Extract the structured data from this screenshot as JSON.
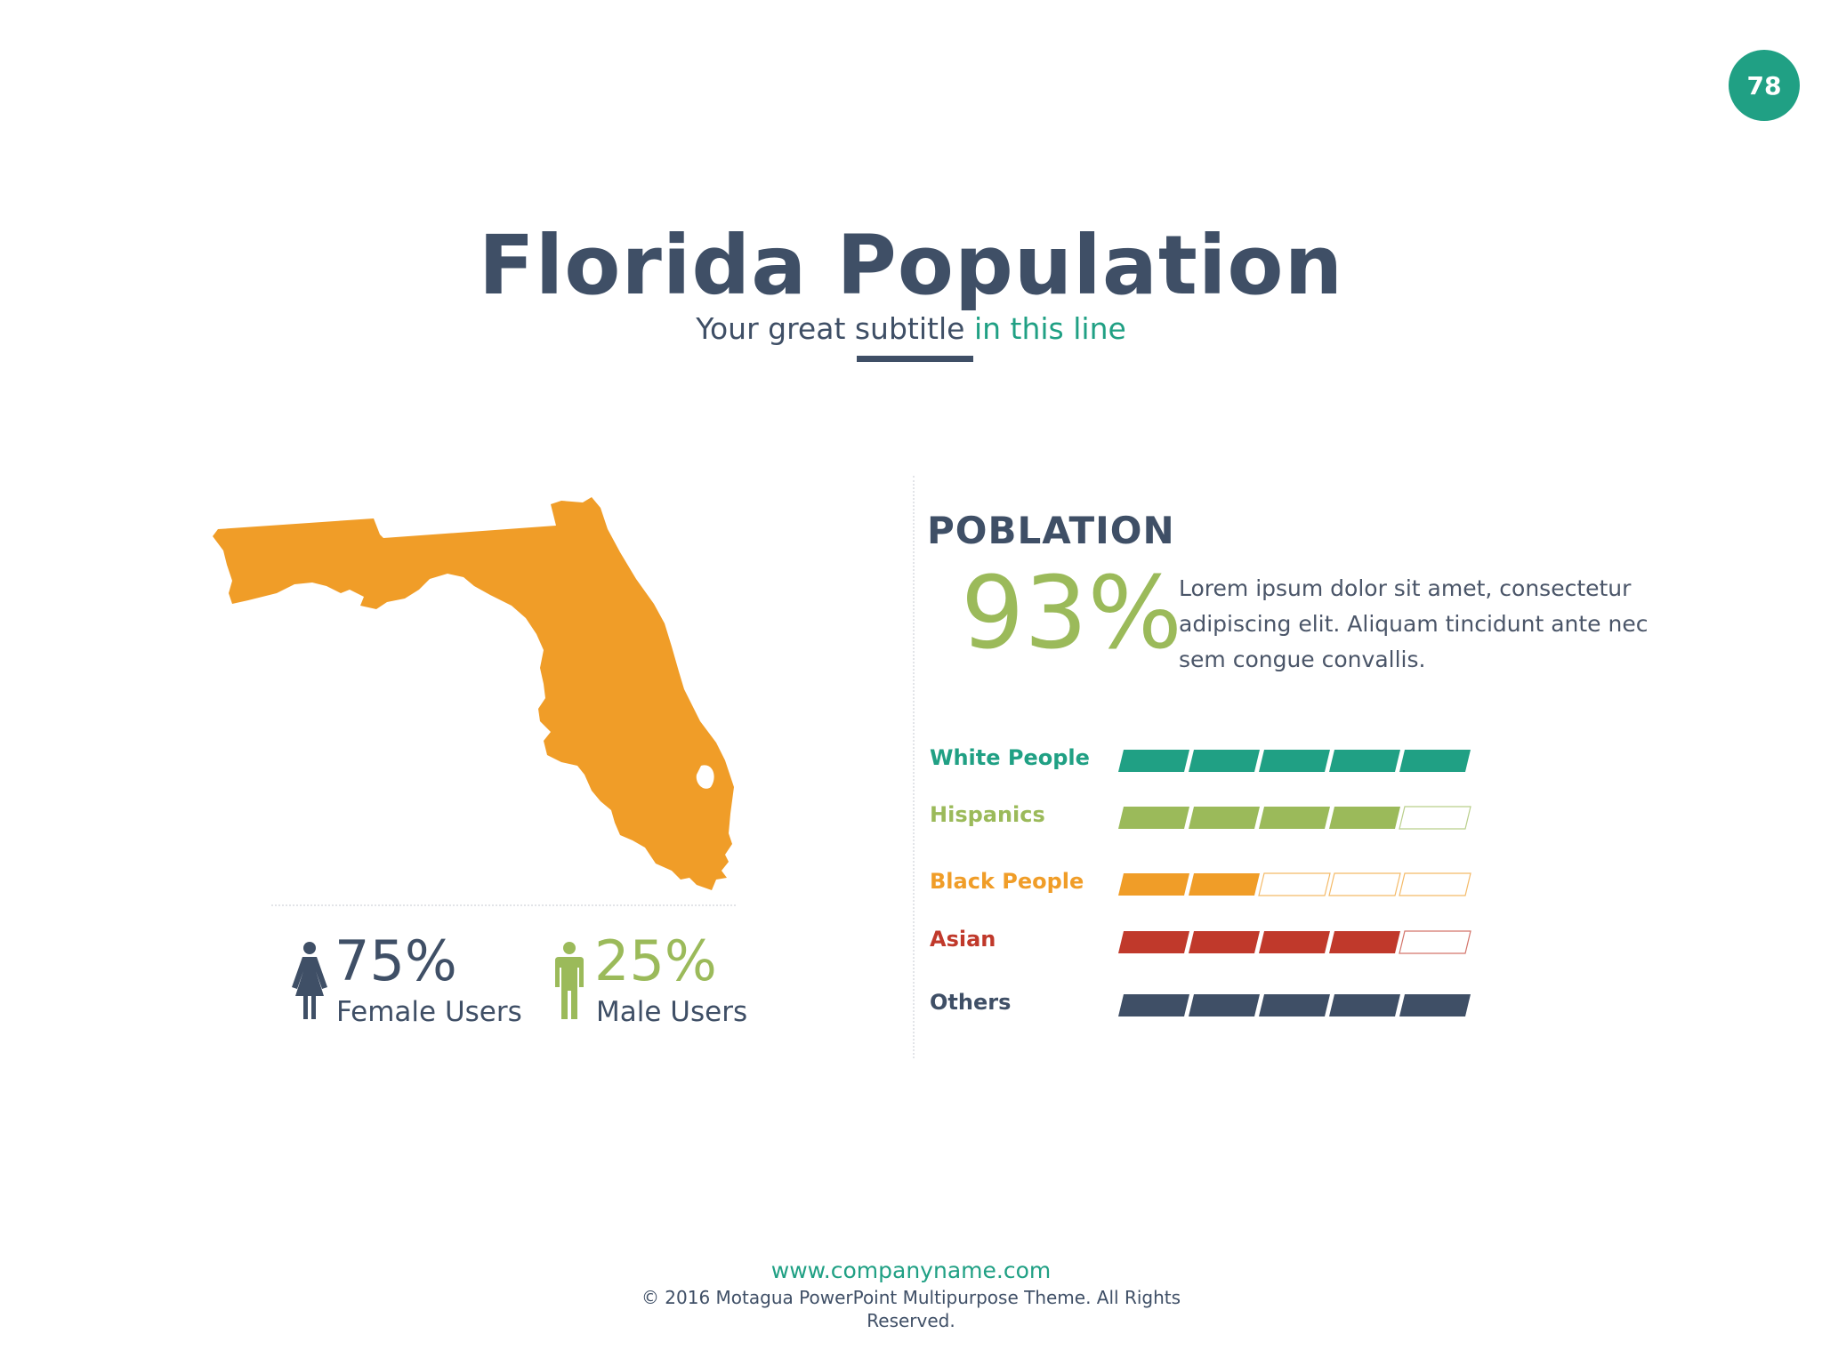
{
  "page_number": "78",
  "title": "Florida Population",
  "subtitle": {
    "main": "Your great subtitle",
    "accent": "in this line"
  },
  "female": {
    "percent": "75%",
    "label": "Female Users"
  },
  "male": {
    "percent": "25%",
    "label": "Male Users"
  },
  "section_heading": "POBLATION",
  "big_percent": "93%",
  "description": "Lorem ipsum dolor sit amet, consectetur adipiscing elit. Aliquam tincidunt ante nec sem congue convallis.",
  "chart_data": {
    "type": "bar",
    "max_segments": 5,
    "categories": [
      "White People",
      "Hispanics",
      "Black People",
      "Asian",
      "Others"
    ],
    "values": [
      5,
      4,
      2,
      4,
      5
    ],
    "colors": [
      "#20a084",
      "#9bba5a",
      "#f09d28",
      "#c0392b",
      "#3f4f66"
    ]
  },
  "colors": {
    "primary": "#3f4f66",
    "accent": "#20a084",
    "green": "#9bba5a",
    "orange": "#f09d28",
    "red": "#c0392b"
  },
  "footer": {
    "url": "www.companyname.com",
    "copyright": "© 2016 Motagua PowerPoint Multipurpose Theme. All Rights Reserved."
  }
}
